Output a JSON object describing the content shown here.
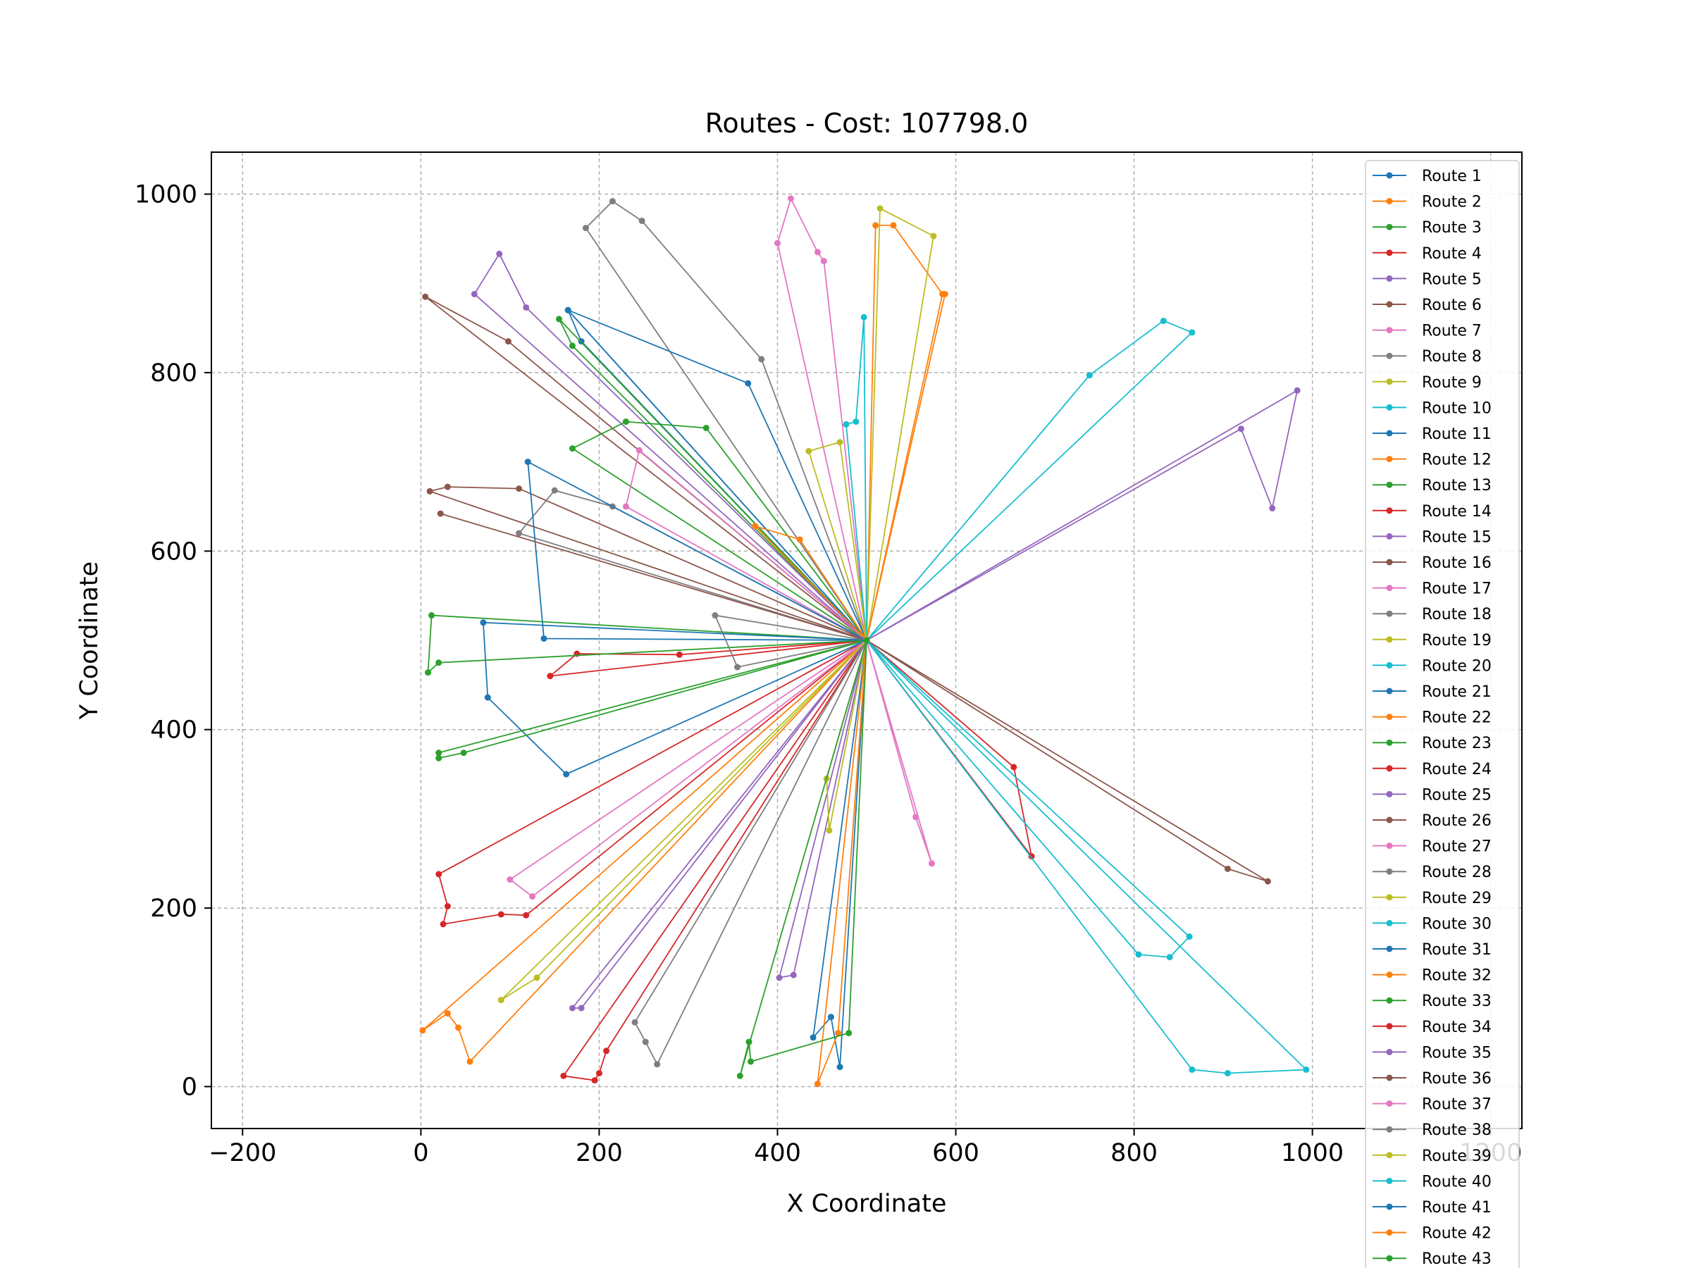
{
  "chart_data": {
    "type": "line",
    "title": "Routes - Cost: 107798.0",
    "xlabel": "X Coordinate",
    "ylabel": "Y Coordinate",
    "xlim": [
      -235,
      1235
    ],
    "ylim": [
      -47,
      1047
    ],
    "xticks": [
      -200,
      0,
      200,
      400,
      600,
      800,
      1000,
      1200
    ],
    "yticks": [
      0,
      200,
      400,
      600,
      800,
      1000
    ],
    "xtick_labels": [
      "−200",
      "0",
      "200",
      "400",
      "600",
      "800",
      "1000",
      "1200"
    ],
    "ytick_labels": [
      "0",
      "200",
      "400",
      "600",
      "800",
      "1000"
    ],
    "grid": true,
    "legend_position": "top-right",
    "depot": [
      500,
      500
    ],
    "colors": [
      "#1f77b4",
      "#ff7f0e",
      "#2ca02c",
      "#d62728",
      "#9467bd",
      "#8c564b",
      "#e377c2",
      "#7f7f7f",
      "#bcbd22",
      "#17becf"
    ],
    "series": [
      {
        "name": "Route 1",
        "points": [
          [
            500,
            500
          ],
          [
            165,
            870
          ],
          [
            180,
            835
          ],
          [
            500,
            500
          ]
        ]
      },
      {
        "name": "Route 2",
        "points": [
          [
            500,
            500
          ],
          [
            510,
            965
          ],
          [
            530,
            965
          ],
          [
            585,
            888
          ],
          [
            500,
            500
          ]
        ]
      },
      {
        "name": "Route 3",
        "points": [
          [
            500,
            500
          ],
          [
            155,
            860
          ],
          [
            170,
            830
          ],
          [
            500,
            500
          ]
        ]
      },
      {
        "name": "Route 4",
        "points": [
          [
            500,
            500
          ],
          [
            20,
            238
          ],
          [
            30,
            202
          ],
          [
            25,
            182
          ],
          [
            90,
            193
          ],
          [
            118,
            192
          ],
          [
            500,
            500
          ]
        ]
      },
      {
        "name": "Route 5",
        "points": [
          [
            500,
            500
          ],
          [
            60,
            888
          ],
          [
            88,
            933
          ],
          [
            118,
            873
          ],
          [
            500,
            500
          ]
        ]
      },
      {
        "name": "Route 6",
        "points": [
          [
            500,
            500
          ],
          [
            5,
            885
          ],
          [
            98,
            835
          ],
          [
            500,
            500
          ]
        ]
      },
      {
        "name": "Route 7",
        "points": [
          [
            500,
            500
          ],
          [
            400,
            945
          ],
          [
            415,
            995
          ],
          [
            445,
            935
          ],
          [
            452,
            925
          ],
          [
            500,
            500
          ]
        ]
      },
      {
        "name": "Route 8",
        "points": [
          [
            500,
            500
          ],
          [
            185,
            962
          ],
          [
            215,
            992
          ],
          [
            248,
            970
          ],
          [
            382,
            815
          ],
          [
            500,
            500
          ]
        ]
      },
      {
        "name": "Route 9",
        "points": [
          [
            500,
            500
          ],
          [
            515,
            984
          ],
          [
            575,
            953
          ],
          [
            500,
            500
          ]
        ]
      },
      {
        "name": "Route 10",
        "points": [
          [
            500,
            500
          ],
          [
            477,
            742
          ],
          [
            488,
            745
          ],
          [
            497,
            862
          ],
          [
            500,
            500
          ]
        ]
      },
      {
        "name": "Route 11",
        "points": [
          [
            500,
            500
          ],
          [
            165,
            870
          ],
          [
            367,
            788
          ],
          [
            500,
            500
          ]
        ]
      },
      {
        "name": "Route 12",
        "points": [
          [
            500,
            500
          ],
          [
            588,
            888
          ],
          [
            500,
            500
          ]
        ]
      },
      {
        "name": "Route 13",
        "points": [
          [
            500,
            500
          ],
          [
            170,
            715
          ],
          [
            230,
            745
          ],
          [
            320,
            738
          ],
          [
            500,
            500
          ]
        ]
      },
      {
        "name": "Route 14",
        "points": [
          [
            500,
            500
          ],
          [
            145,
            460
          ],
          [
            175,
            485
          ],
          [
            290,
            484
          ],
          [
            500,
            500
          ]
        ]
      },
      {
        "name": "Route 15",
        "points": [
          [
            500,
            500
          ],
          [
            920,
            737
          ],
          [
            955,
            648
          ],
          [
            983,
            780
          ],
          [
            500,
            500
          ]
        ]
      },
      {
        "name": "Route 16",
        "points": [
          [
            500,
            500
          ],
          [
            10,
            667
          ],
          [
            30,
            672
          ],
          [
            110,
            670
          ],
          [
            500,
            500
          ]
        ]
      },
      {
        "name": "Route 17",
        "points": [
          [
            500,
            500
          ],
          [
            230,
            650
          ],
          [
            245,
            713
          ],
          [
            500,
            500
          ]
        ]
      },
      {
        "name": "Route 18",
        "points": [
          [
            500,
            500
          ],
          [
            110,
            620
          ],
          [
            150,
            668
          ],
          [
            215,
            650
          ],
          [
            500,
            500
          ]
        ]
      },
      {
        "name": "Route 19",
        "points": [
          [
            500,
            500
          ],
          [
            435,
            712
          ],
          [
            470,
            722
          ],
          [
            500,
            500
          ]
        ]
      },
      {
        "name": "Route 20",
        "points": [
          [
            500,
            500
          ],
          [
            750,
            797
          ],
          [
            833,
            858
          ],
          [
            865,
            845
          ],
          [
            500,
            500
          ]
        ]
      },
      {
        "name": "Route 21",
        "points": [
          [
            500,
            500
          ],
          [
            120,
            700
          ],
          [
            138,
            502
          ],
          [
            500,
            500
          ]
        ]
      },
      {
        "name": "Route 22",
        "points": [
          [
            500,
            500
          ],
          [
            375,
            628
          ],
          [
            425,
            613
          ],
          [
            500,
            500
          ]
        ]
      },
      {
        "name": "Route 23",
        "points": [
          [
            500,
            500
          ],
          [
            12,
            528
          ],
          [
            8,
            464
          ],
          [
            20,
            475
          ],
          [
            500,
            500
          ]
        ]
      },
      {
        "name": "Route 24",
        "points": [
          [
            500,
            500
          ],
          [
            665,
            358
          ],
          [
            685,
            258
          ],
          [
            500,
            500
          ]
        ]
      },
      {
        "name": "Route 25",
        "points": [
          [
            500,
            500
          ],
          [
            402,
            122
          ],
          [
            418,
            125
          ],
          [
            500,
            500
          ]
        ]
      },
      {
        "name": "Route 26",
        "points": [
          [
            500,
            500
          ],
          [
            22,
            642
          ],
          [
            500,
            500
          ]
        ]
      },
      {
        "name": "Route 27",
        "points": [
          [
            500,
            500
          ],
          [
            555,
            302
          ],
          [
            573,
            250
          ],
          [
            500,
            500
          ]
        ]
      },
      {
        "name": "Route 28",
        "points": [
          [
            500,
            500
          ],
          [
            330,
            528
          ],
          [
            355,
            470
          ],
          [
            500,
            500
          ]
        ]
      },
      {
        "name": "Route 29",
        "points": [
          [
            500,
            500
          ],
          [
            455,
            345
          ],
          [
            458,
            287
          ],
          [
            500,
            500
          ]
        ]
      },
      {
        "name": "Route 30",
        "points": [
          [
            500,
            500
          ],
          [
            805,
            148
          ],
          [
            840,
            145
          ],
          [
            862,
            168
          ],
          [
            500,
            500
          ]
        ]
      },
      {
        "name": "Route 31",
        "points": [
          [
            500,
            500
          ],
          [
            70,
            520
          ],
          [
            75,
            436
          ],
          [
            163,
            350
          ],
          [
            500,
            500
          ]
        ]
      },
      {
        "name": "Route 32",
        "points": [
          [
            500,
            500
          ],
          [
            2,
            63
          ],
          [
            30,
            82
          ],
          [
            42,
            66
          ],
          [
            55,
            28
          ],
          [
            500,
            500
          ]
        ]
      },
      {
        "name": "Route 33",
        "points": [
          [
            500,
            500
          ],
          [
            20,
            374
          ],
          [
            20,
            368
          ],
          [
            48,
            374
          ],
          [
            500,
            500
          ]
        ]
      },
      {
        "name": "Route 34",
        "points": [
          [
            500,
            500
          ],
          [
            160,
            12
          ],
          [
            195,
            7
          ],
          [
            200,
            15
          ],
          [
            208,
            40
          ],
          [
            500,
            500
          ]
        ]
      },
      {
        "name": "Route 35",
        "points": [
          [
            500,
            500
          ],
          [
            170,
            88
          ],
          [
            180,
            88
          ],
          [
            500,
            500
          ]
        ]
      },
      {
        "name": "Route 36",
        "points": [
          [
            500,
            500
          ],
          [
            950,
            230
          ],
          [
            905,
            244
          ],
          [
            500,
            500
          ]
        ]
      },
      {
        "name": "Route 37",
        "points": [
          [
            500,
            500
          ],
          [
            100,
            232
          ],
          [
            125,
            213
          ],
          [
            500,
            500
          ]
        ]
      },
      {
        "name": "Route 38",
        "points": [
          [
            500,
            500
          ],
          [
            240,
            72
          ],
          [
            252,
            50
          ],
          [
            265,
            25
          ],
          [
            500,
            500
          ]
        ]
      },
      {
        "name": "Route 39",
        "points": [
          [
            500,
            500
          ],
          [
            90,
            97
          ],
          [
            130,
            122
          ],
          [
            500,
            500
          ]
        ]
      },
      {
        "name": "Route 40",
        "points": [
          [
            500,
            500
          ],
          [
            865,
            19
          ],
          [
            905,
            15
          ],
          [
            993,
            19
          ],
          [
            500,
            500
          ]
        ]
      },
      {
        "name": "Route 41",
        "points": [
          [
            500,
            500
          ],
          [
            440,
            55
          ],
          [
            460,
            78
          ],
          [
            470,
            22
          ],
          [
            500,
            500
          ]
        ]
      },
      {
        "name": "Route 42",
        "points": [
          [
            500,
            500
          ],
          [
            445,
            3
          ],
          [
            468,
            60
          ],
          [
            500,
            500
          ]
        ]
      },
      {
        "name": "Route 43",
        "points": [
          [
            500,
            500
          ],
          [
            358,
            12
          ],
          [
            368,
            50
          ],
          [
            370,
            28
          ],
          [
            480,
            60
          ],
          [
            500,
            500
          ]
        ]
      }
    ]
  }
}
